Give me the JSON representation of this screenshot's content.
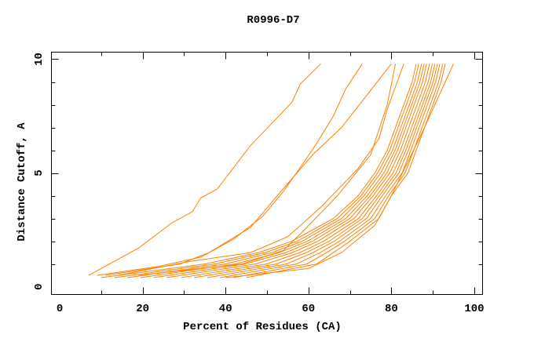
{
  "chart_data": {
    "type": "line",
    "title": "R0996-D7",
    "xlabel": "Percent of Residues (CA)",
    "ylabel": "Distance Cutoff, A",
    "xlim": [
      -2,
      102
    ],
    "ylim": [
      -0.34,
      10.31
    ],
    "xticks": [
      0,
      20,
      40,
      60,
      80,
      100
    ],
    "yticks": [
      0,
      5,
      10
    ],
    "grid": false,
    "legend": "none",
    "line_color": "#ff8000",
    "series": [
      {
        "x": [
          7,
          12,
          19,
          27,
          32,
          34,
          38,
          46,
          56,
          58,
          63
        ],
        "y": [
          0.5,
          1,
          1.7,
          2.8,
          3.3,
          3.9,
          4.3,
          6.2,
          8.1,
          8.9,
          9.8
        ]
      },
      {
        "x": [
          9,
          24,
          34,
          42,
          49,
          54,
          59,
          62,
          66,
          69,
          73
        ],
        "y": [
          0.5,
          0.9,
          1.3,
          2.1,
          3.1,
          4.2,
          5.5,
          6.3,
          7.5,
          8.7,
          9.8
        ]
      },
      {
        "x": [
          11,
          29,
          36,
          46,
          52,
          61,
          68,
          74,
          80
        ],
        "y": [
          0.5,
          1,
          1.5,
          2.6,
          3.9,
          5.8,
          7,
          8.4,
          9.8
        ]
      },
      {
        "x": [
          14,
          31,
          46,
          55,
          63,
          72,
          77,
          79,
          83
        ],
        "y": [
          0.5,
          1.1,
          1.5,
          2.2,
          3.5,
          5.2,
          6.5,
          7.8,
          9.8
        ]
      },
      {
        "x": [
          19,
          44,
          54,
          59,
          67,
          75,
          79,
          81
        ],
        "y": [
          0.5,
          1,
          1.6,
          2.5,
          4,
          5.8,
          8,
          9.8
        ]
      },
      {
        "x": [
          10,
          35,
          48,
          56,
          66,
          72,
          76,
          79,
          81,
          83,
          85,
          86
        ],
        "y": [
          0.4,
          1,
          1.5,
          2,
          3,
          4,
          5,
          6,
          7,
          8,
          9,
          9.8
        ]
      },
      {
        "x": [
          13.2,
          37.4,
          49.6,
          57.3,
          67,
          72.7,
          76.7,
          79.6,
          81.6,
          83.6,
          85.6,
          86.6
        ],
        "y": [
          0.4,
          1,
          1.5,
          2,
          3,
          4,
          5,
          6,
          7,
          8,
          9,
          9.8
        ]
      },
      {
        "x": [
          16.3,
          39.9,
          51.2,
          58.5,
          68,
          73.4,
          77.4,
          80.3,
          82.3,
          84.3,
          86.3,
          87.3
        ],
        "y": [
          0.4,
          1,
          1.5,
          2,
          3,
          4,
          5,
          6,
          7,
          8,
          9,
          9.8
        ]
      },
      {
        "x": [
          19.5,
          42.3,
          52.9,
          59.8,
          69,
          74.2,
          78.2,
          80.9,
          82.9,
          84.9,
          86.9,
          87.9
        ],
        "y": [
          0.4,
          1,
          1.5,
          2,
          3,
          4,
          5,
          6,
          7,
          8,
          9,
          9.8
        ]
      },
      {
        "x": [
          22.6,
          44.7,
          54.5,
          61,
          70,
          74.9,
          78.9,
          81.5,
          83.5,
          85.5,
          87.5,
          88.5
        ],
        "y": [
          0.4,
          1,
          1.5,
          2,
          3,
          4,
          5,
          6,
          7,
          8,
          9,
          9.8
        ]
      },
      {
        "x": [
          25.8,
          47.2,
          56.1,
          62.3,
          71,
          75.6,
          79.6,
          82.2,
          84.2,
          86.2,
          88.2,
          89.2
        ],
        "y": [
          0.4,
          1,
          1.5,
          2,
          3,
          4,
          5,
          6,
          7,
          8,
          9,
          9.8
        ]
      },
      {
        "x": [
          29.3,
          49.9,
          57.9,
          63.7,
          72.1,
          76.4,
          80.4,
          82.9,
          84.9,
          86.9,
          88.9,
          89.9
        ],
        "y": [
          0.4,
          1,
          1.5,
          2,
          3,
          4,
          5,
          6,
          7,
          8,
          9,
          9.8
        ]
      },
      {
        "x": [
          32.4,
          52.3,
          59.5,
          65,
          73,
          77.1,
          81.1,
          83.5,
          85.5,
          87.5,
          89.5,
          90.5
        ],
        "y": [
          0.4,
          1,
          1.5,
          2,
          3,
          4,
          5,
          6,
          7,
          8,
          9,
          9.8
        ]
      },
      {
        "x": [
          35.6,
          54.7,
          61.1,
          66.2,
          74,
          77.8,
          81.8,
          84.1,
          86.1,
          88.1,
          90.1,
          91.1
        ],
        "y": [
          0.4,
          1,
          1.5,
          2,
          3,
          4,
          5,
          6,
          7,
          8,
          9,
          9.8
        ]
      },
      {
        "x": [
          38.7,
          57.1,
          62.8,
          67.5,
          75,
          78.6,
          82.6,
          84.7,
          86.7,
          88.7,
          90.7,
          91.7
        ],
        "y": [
          0.4,
          1,
          1.5,
          2,
          3,
          4,
          5,
          6,
          7,
          8,
          9,
          9.8
        ]
      },
      {
        "x": [
          41.9,
          59.6,
          64.4,
          68.7,
          76,
          79.3,
          83.3,
          85.4,
          87.4,
          89.4,
          91.4,
          92.4
        ],
        "y": [
          0.4,
          1,
          1.5,
          2,
          3,
          4,
          5,
          6,
          7,
          8,
          9,
          9.8
        ]
      },
      {
        "x": [
          45,
          62,
          66,
          70,
          77,
          80,
          84,
          86,
          88,
          90,
          92,
          93
        ],
        "y": [
          0.4,
          1,
          1.5,
          2,
          3,
          4,
          5,
          6,
          7,
          8,
          9,
          9.8
        ]
      },
      {
        "x": [
          40,
          60,
          68,
          76,
          80,
          84,
          88,
          91,
          93,
          95
        ],
        "y": [
          0.4,
          0.8,
          1.5,
          2.7,
          4,
          5.5,
          7,
          8.2,
          9,
          9.8
        ]
      }
    ]
  }
}
